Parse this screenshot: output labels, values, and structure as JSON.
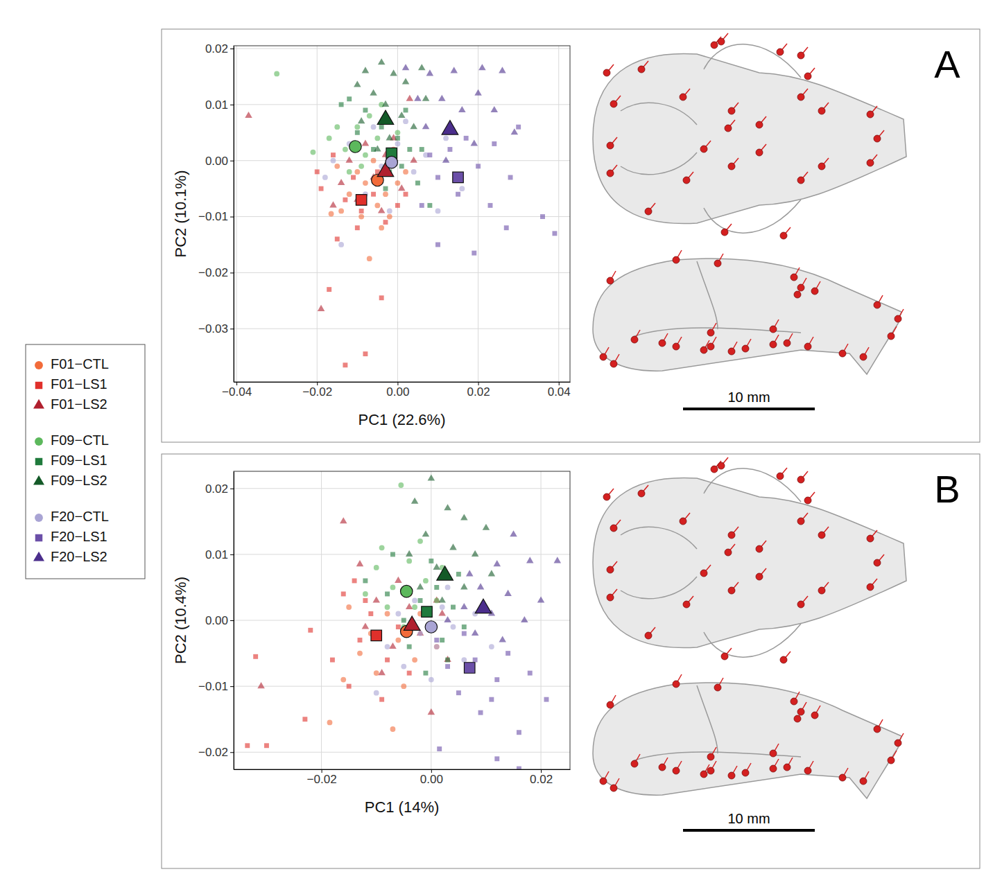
{
  "chart_data": [
    {
      "type": "scatter",
      "panel": "A",
      "xlabel": "PC1 (22.6%)",
      "ylabel": "PC2 (10.1%)",
      "grid": true,
      "legend": "left",
      "scale_bar_label": "10 mm",
      "xlim": [
        -0.0407,
        0.0428
      ],
      "ylim": [
        -0.0395,
        0.0205
      ],
      "xticks": [
        {
          "value": -0.04,
          "label": "−0.04"
        },
        {
          "value": -0.02,
          "label": "−0.02"
        },
        {
          "value": 0,
          "label": "0.00"
        },
        {
          "value": 0.02,
          "label": "0.02"
        },
        {
          "value": 0.04,
          "label": "0.04"
        }
      ],
      "yticks": [
        {
          "value": 0.02,
          "label": "0.02"
        },
        {
          "value": 0.01,
          "label": "0.01"
        },
        {
          "value": 0,
          "label": "0.00"
        },
        {
          "value": -0.01,
          "label": "−0.01"
        },
        {
          "value": -0.02,
          "label": "−0.02"
        },
        {
          "value": -0.03,
          "label": "−0.03"
        }
      ],
      "series": [
        {
          "name": "F01−CTL",
          "color": "#f26b3a",
          "marker": "circle",
          "mean_x": -0.005,
          "mean_y": -0.0035,
          "x": [
            -0.0165,
            -0.014,
            -0.007,
            -0.012,
            -0.008,
            -0.005,
            -0.003,
            -0.01,
            -0.006,
            -0.002,
            0.0,
            -0.015,
            -0.004,
            0.002,
            -0.009,
            -0.001
          ],
          "y": [
            -0.0095,
            -0.009,
            -0.0175,
            -0.006,
            -0.004,
            -0.008,
            -0.006,
            -0.002,
            0.0,
            -0.01,
            -0.004,
            -0.001,
            -0.012,
            -0.002,
            -0.01,
            0.002
          ]
        },
        {
          "name": "F01−LS1",
          "color": "#e0302b",
          "marker": "square",
          "mean_x": -0.009,
          "mean_y": -0.007,
          "x": [
            -0.013,
            -0.008,
            -0.017,
            -0.004,
            -0.015,
            -0.01,
            -0.019,
            -0.013,
            -0.009,
            -0.006,
            -0.003,
            -0.016,
            0.0,
            -0.011,
            -0.005,
            0.002,
            -0.02
          ],
          "y": [
            -0.0365,
            -0.0345,
            -0.023,
            -0.0245,
            -0.014,
            -0.012,
            -0.005,
            -0.007,
            -0.009,
            -0.006,
            -0.011,
            0.001,
            -0.008,
            -0.003,
            -0.002,
            -0.006,
            -0.002
          ]
        },
        {
          "name": "F01−LS2",
          "color": "#b0202e",
          "marker": "triangle",
          "mean_x": -0.003,
          "mean_y": -0.002,
          "x": [
            -0.037,
            -0.019,
            -0.014,
            -0.01,
            -0.006,
            -0.003,
            -0.008,
            0.001,
            -0.012,
            -0.004,
            0.004,
            -0.001,
            -0.016,
            0.003
          ],
          "y": [
            0.008,
            -0.0265,
            -0.004,
            -0.007,
            -0.003,
            0.001,
            0.003,
            -0.005,
            0.0,
            -0.009,
            0.0,
            0.004,
            -0.008,
            0.011
          ]
        },
        {
          "name": "F09−CTL",
          "color": "#5cb85c",
          "marker": "circle",
          "mean_x": -0.0105,
          "mean_y": 0.0025,
          "x": [
            -0.03,
            -0.021,
            -0.017,
            -0.013,
            -0.01,
            -0.008,
            -0.012,
            -0.005,
            -0.007,
            -0.002,
            -0.015,
            0.0,
            -0.009,
            -0.004
          ],
          "y": [
            0.0155,
            0.0015,
            0.004,
            0.002,
            0.006,
            0.001,
            -0.002,
            0.004,
            0.008,
            0.0,
            0.006,
            0.005,
            -0.001,
            0.01
          ]
        },
        {
          "name": "F09−LS1",
          "color": "#1f7a3c",
          "marker": "square",
          "mean_x": -0.0015,
          "mean_y": 0.0013,
          "x": [
            -0.012,
            -0.008,
            -0.004,
            0.0,
            0.003,
            -0.006,
            -0.002,
            0.005,
            0.008,
            -0.01,
            0.002,
            -0.014,
            0.006,
            -0.003,
            0.001
          ],
          "y": [
            0.011,
            0.009,
            0.006,
            0.004,
            0.002,
            0.002,
            -0.002,
            -0.004,
            -0.008,
            0.005,
            0.009,
            0.01,
            0.002,
            -0.005,
            -0.001
          ]
        },
        {
          "name": "F09−LS2",
          "color": "#145a28",
          "marker": "triangle",
          "mean_x": -0.003,
          "mean_y": 0.0073,
          "x": [
            -0.008,
            -0.004,
            -0.001,
            0.002,
            -0.006,
            -0.003,
            0.001,
            -0.009,
            0.004,
            -0.002,
            -0.005,
            0.007,
            0.006,
            -0.01
          ],
          "y": [
            0.016,
            0.0175,
            0.0155,
            0.014,
            0.012,
            0.01,
            0.008,
            0.007,
            0.006,
            0.004,
            0.002,
            0.011,
            0.0165,
            0.0135
          ]
        },
        {
          "name": "F20−CTL",
          "color": "#a9a4d4",
          "marker": "circle",
          "mean_x": -0.0015,
          "mean_y": -0.0003,
          "x": [
            -0.016,
            -0.018,
            -0.012,
            -0.008,
            -0.004,
            0.0,
            0.004,
            0.007,
            -0.002,
            -0.014,
            0.012,
            0.016,
            -0.006,
            0.01,
            0.002
          ],
          "y": [
            0.0,
            -0.003,
            0.003,
            -0.006,
            -0.001,
            0.003,
            -0.002,
            0.001,
            -0.009,
            -0.015,
            0.004,
            -0.005,
            0.006,
            -0.009,
            0.007
          ]
        },
        {
          "name": "F20−LS1",
          "color": "#6b4fa8",
          "marker": "square",
          "mean_x": 0.015,
          "mean_y": -0.003,
          "x": [
            0.036,
            0.039,
            0.027,
            0.019,
            0.01,
            0.023,
            0.015,
            0.01,
            0.02,
            0.028,
            0.013,
            0.006,
            0.017,
            0.024,
            0.008,
            0.03
          ],
          "y": [
            -0.01,
            -0.013,
            -0.012,
            -0.0165,
            -0.015,
            -0.008,
            -0.006,
            -0.003,
            -0.001,
            -0.003,
            0.002,
            -0.008,
            0.004,
            0.003,
            0.001,
            0.006
          ]
        },
        {
          "name": "F20−LS2",
          "color": "#4b2e8c",
          "marker": "triangle",
          "mean_x": 0.013,
          "mean_y": 0.0055,
          "x": [
            0.002,
            0.008,
            0.014,
            0.021,
            0.026,
            0.02,
            0.011,
            0.016,
            0.024,
            0.007,
            0.013,
            0.019,
            0.029,
            0.012,
            0.005
          ],
          "y": [
            0.0165,
            0.0155,
            0.016,
            0.0165,
            0.016,
            0.012,
            0.011,
            0.009,
            0.009,
            0.006,
            0.005,
            0.003,
            0.005,
            0.0,
            0.011
          ]
        }
      ]
    },
    {
      "type": "scatter",
      "panel": "B",
      "xlabel": "PC1 (14%)",
      "ylabel": "PC2 (10.4%)",
      "grid": true,
      "scale_bar_label": "10 mm",
      "xlim": [
        -0.036,
        0.0253
      ],
      "ylim": [
        -0.0226,
        0.0226
      ],
      "xticks": [
        {
          "value": -0.02,
          "label": "−0.02"
        },
        {
          "value": 0,
          "label": "0.00"
        },
        {
          "value": 0.02,
          "label": "0.02"
        }
      ],
      "yticks": [
        {
          "value": 0.02,
          "label": "0.02"
        },
        {
          "value": 0.01,
          "label": "0.01"
        },
        {
          "value": 0,
          "label": "0.00"
        },
        {
          "value": -0.01,
          "label": "−0.01"
        },
        {
          "value": -0.02,
          "label": "−0.02"
        }
      ],
      "series": [
        {
          "name": "F01−CTL",
          "color": "#f26b3a",
          "marker": "circle",
          "mean_x": -0.0045,
          "mean_y": -0.0017,
          "x": [
            -0.0185,
            -0.007,
            -0.013,
            -0.01,
            -0.006,
            -0.003,
            -0.008,
            -0.015,
            -0.002,
            -0.005,
            0.001,
            -0.011,
            -0.004,
            -0.016
          ],
          "y": [
            -0.0155,
            -0.0165,
            -0.005,
            -0.008,
            -0.003,
            -0.006,
            0.001,
            0.002,
            0.001,
            -0.01,
            -0.004,
            -0.002,
            0.004,
            -0.009
          ]
        },
        {
          "name": "F01−LS1",
          "color": "#e0302b",
          "marker": "square",
          "mean_x": -0.01,
          "mean_y": -0.0023,
          "x": [
            -0.0335,
            -0.03,
            -0.032,
            -0.023,
            -0.022,
            -0.018,
            -0.015,
            -0.013,
            -0.011,
            -0.016,
            -0.008,
            -0.006,
            -0.014,
            -0.009,
            -0.004,
            -0.012
          ],
          "y": [
            -0.019,
            -0.019,
            -0.0055,
            -0.015,
            -0.0015,
            -0.006,
            -0.01,
            -0.003,
            0.001,
            0.004,
            -0.006,
            -0.001,
            0.006,
            -0.012,
            -0.008,
            0.003
          ]
        },
        {
          "name": "F01−LS2",
          "color": "#b0202e",
          "marker": "triangle",
          "mean_x": -0.0035,
          "mean_y": -0.0008,
          "x": [
            -0.031,
            -0.016,
            -0.013,
            -0.01,
            -0.007,
            -0.004,
            -0.002,
            -0.009,
            0.001,
            0.0,
            -0.006,
            0.003,
            -0.012,
            0.002
          ],
          "y": [
            -0.01,
            0.015,
            0.0085,
            0.003,
            -0.004,
            0.002,
            -0.002,
            -0.008,
            0.003,
            -0.014,
            0.006,
            -0.006,
            -0.001,
            0.001
          ]
        },
        {
          "name": "F09−CTL",
          "color": "#5cb85c",
          "marker": "circle",
          "mean_x": -0.0045,
          "mean_y": 0.0044,
          "x": [
            -0.0055,
            -0.01,
            -0.007,
            -0.004,
            -0.001,
            -0.008,
            -0.003,
            0.001,
            -0.012,
            -0.005,
            0.002,
            -0.002,
            -0.009
          ],
          "y": [
            0.0205,
            0.008,
            0.005,
            0.009,
            0.006,
            0.002,
            0.002,
            0.003,
            0.004,
            -0.001,
            0.008,
            0.012,
            0.011
          ]
        },
        {
          "name": "F09−LS1",
          "color": "#1f7a3c",
          "marker": "square",
          "mean_x": -0.0008,
          "mean_y": 0.0013,
          "x": [
            -0.012,
            -0.008,
            -0.005,
            -0.002,
            0.001,
            0.004,
            -0.004,
            0.002,
            0.006,
            0.0,
            -0.007,
            0.005,
            -0.01,
            0.003,
            -0.001
          ],
          "y": [
            0.006,
            0.004,
            0.0,
            0.003,
            0.005,
            0.002,
            -0.004,
            -0.003,
            -0.001,
            0.009,
            0.01,
            0.007,
            -0.002,
            -0.006,
            -0.008
          ]
        },
        {
          "name": "F09−LS2",
          "color": "#145a28",
          "marker": "triangle",
          "mean_x": 0.0025,
          "mean_y": 0.0068,
          "x": [
            0.0,
            -0.003,
            0.003,
            0.006,
            0.01,
            -0.001,
            0.004,
            0.008,
            0.001,
            -0.004,
            0.006,
            0.011,
            0.002,
            -0.002
          ],
          "y": [
            0.0215,
            0.018,
            0.017,
            0.0155,
            0.014,
            0.013,
            0.011,
            0.01,
            0.008,
            0.01,
            0.005,
            0.007,
            0.003,
            0.005
          ]
        },
        {
          "name": "F20−CTL",
          "color": "#a9a4d4",
          "marker": "circle",
          "mean_x": 0.0,
          "mean_y": -0.001,
          "x": [
            -0.008,
            -0.005,
            -0.002,
            0.001,
            0.004,
            0.002,
            -0.003,
            0.006,
            -0.006,
            0.008,
            0.0,
            0.011,
            -0.01,
            0.003
          ],
          "y": [
            -0.004,
            -0.007,
            -0.002,
            -0.004,
            -0.001,
            0.002,
            0.003,
            -0.006,
            0.001,
            0.001,
            -0.009,
            -0.004,
            -0.011,
            0.005
          ]
        },
        {
          "name": "F20−LS1",
          "color": "#6b4fa8",
          "marker": "square",
          "mean_x": 0.007,
          "mean_y": -0.0072,
          "x": [
            0.016,
            0.012,
            0.0015,
            0.021,
            0.016,
            0.009,
            0.005,
            0.012,
            0.008,
            0.003,
            0.014,
            0.006,
            0.011,
            0.018,
            0.001
          ],
          "y": [
            -0.0225,
            -0.021,
            -0.0195,
            -0.012,
            -0.017,
            -0.014,
            -0.011,
            -0.009,
            -0.006,
            -0.007,
            -0.005,
            -0.002,
            -0.012,
            -0.008,
            -0.003
          ]
        },
        {
          "name": "F20−LS2",
          "color": "#4b2e8c",
          "marker": "triangle",
          "mean_x": 0.0095,
          "mean_y": 0.0018,
          "x": [
            0.023,
            0.018,
            0.015,
            0.012,
            0.009,
            0.014,
            0.006,
            0.011,
            0.017,
            0.007,
            0.003,
            0.013,
            0.02,
            0.008
          ],
          "y": [
            0.009,
            0.009,
            0.013,
            0.0085,
            0.005,
            0.004,
            0.002,
            0.001,
            0.0,
            0.007,
            0.0,
            -0.003,
            0.003,
            -0.002
          ]
        }
      ]
    }
  ]
}
